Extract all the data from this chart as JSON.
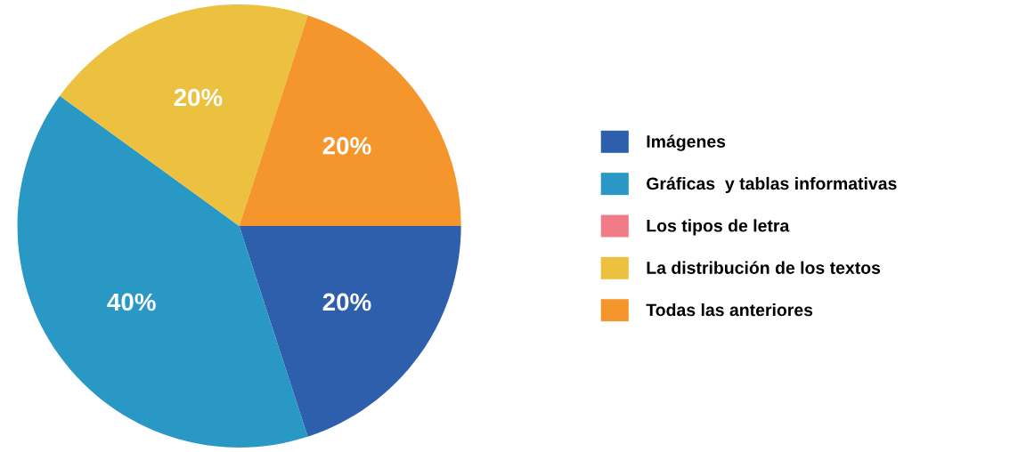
{
  "chart_data": {
    "type": "pie",
    "categories": [
      "Imágenes",
      "Gráficas  y tablas informativas",
      "Los tipos de letra",
      "La distribución de los textos",
      "Todas las anteriores"
    ],
    "values": [
      20,
      40,
      0,
      20,
      20
    ],
    "colors": [
      "#2e5fac",
      "#2a98c4",
      "#f17c87",
      "#ecc13f",
      "#f4962c"
    ],
    "value_labels": [
      "20%",
      "40%",
      null,
      "20%",
      "20%"
    ],
    "legend": "right"
  }
}
